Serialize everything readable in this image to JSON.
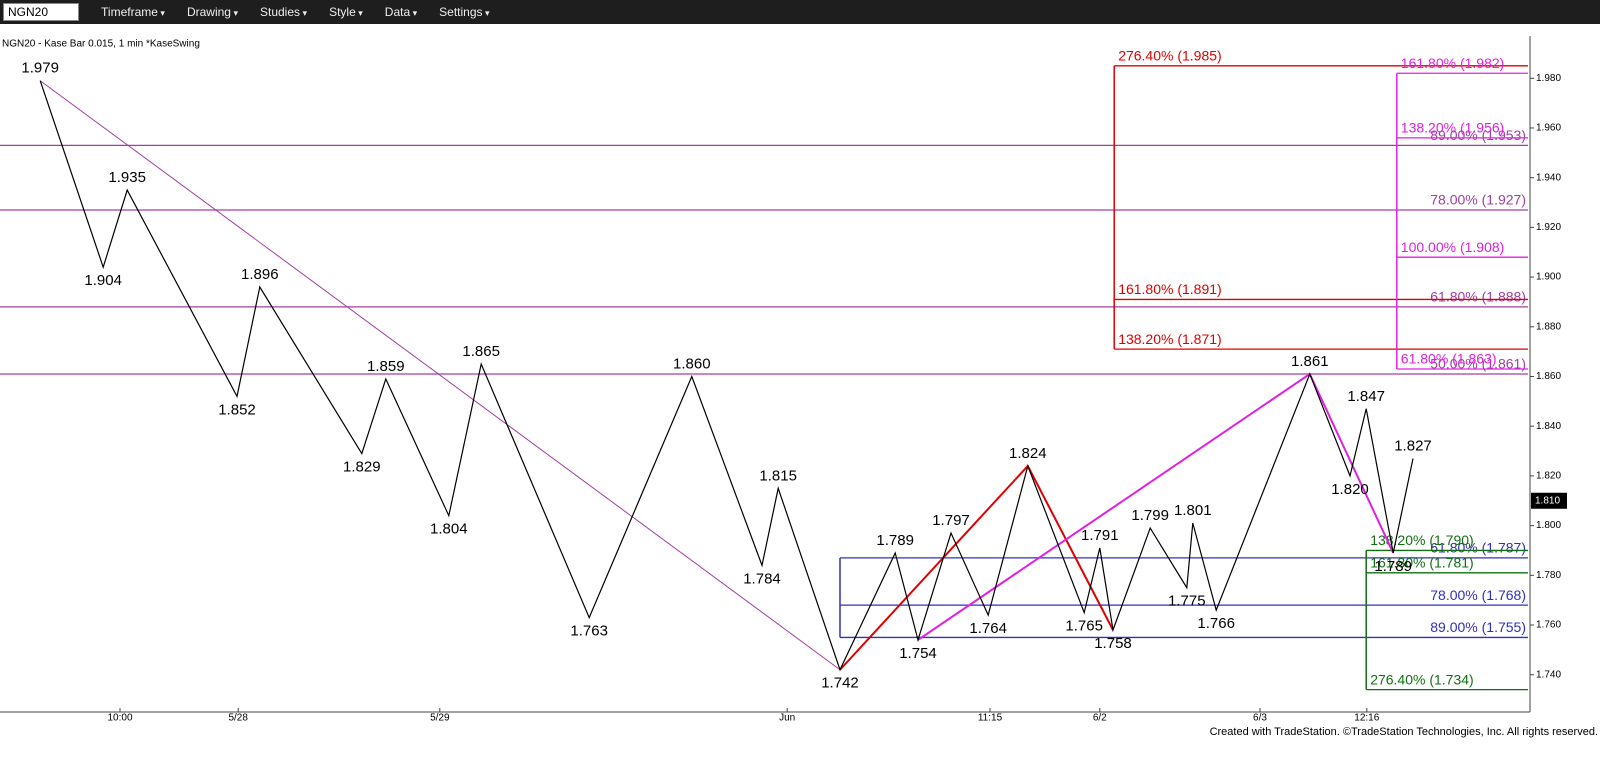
{
  "toolbar": {
    "symbol": "NGN20",
    "items": [
      "Timeframe",
      "Drawing",
      "Studies",
      "Style",
      "Data",
      "Settings"
    ]
  },
  "footer": "Created with TradeStation. ©TradeStation Technologies, Inc. All rights reserved.",
  "chart_data": {
    "type": "line",
    "title": "NGN20 - Kase Bar 0.015, 1 min  *KaseSwing",
    "color": "#000000",
    "x": [
      6.7,
      17.2,
      21.2,
      39.5,
      43.3,
      60.3,
      64.3,
      74.8,
      80.2,
      98.2,
      115.3,
      127,
      129.7,
      140,
      149.2,
      153,
      158.5,
      164.7,
      171.3,
      180.7,
      183.3,
      185.5,
      191.7,
      197.8,
      198.8,
      202.7,
      218.3,
      225,
      227.7,
      232.2,
      235.5
    ],
    "values": [
      1.979,
      1.904,
      1.935,
      1.852,
      1.896,
      1.829,
      1.859,
      1.804,
      1.865,
      1.763,
      1.86,
      1.784,
      1.815,
      1.742,
      1.789,
      1.754,
      1.797,
      1.764,
      1.824,
      1.765,
      1.791,
      1.758,
      1.799,
      1.775,
      1.801,
      1.766,
      1.861,
      1.82,
      1.847,
      1.789,
      1.827
    ],
    "value_labels": [
      "1.979",
      "1.904",
      "1.935",
      "1.852",
      "1.896",
      "1.829",
      "1.859",
      "1.804",
      "1.865",
      "1.763",
      "1.860",
      "1.784",
      "1.815",
      "1.742",
      "1.789",
      "1.754",
      "1.797",
      "1.764",
      "1.824",
      "1.765",
      "1.791",
      "1.758",
      "1.799",
      "1.775",
      "1.801",
      "1.766",
      "1.861",
      "1.820",
      "1.847",
      "1.789",
      "1.827"
    ],
    "xlim": [
      0,
      255
    ],
    "xticks": [
      {
        "value": 20,
        "label": "10:00"
      },
      {
        "value": 39.7,
        "label": "5/28"
      },
      {
        "value": 73.3,
        "label": "5/29"
      },
      {
        "value": 131.2,
        "label": "Jun"
      },
      {
        "value": 165,
        "label": "11:15"
      },
      {
        "value": 183.3,
        "label": "6/2"
      },
      {
        "value": 210,
        "label": "6/3"
      },
      {
        "value": 227.8,
        "label": "12:16"
      }
    ],
    "ylim": [
      1.725,
      1.997
    ],
    "yticks": [
      {
        "value": 1.74,
        "label": "1.740"
      },
      {
        "value": 1.76,
        "label": "1.760"
      },
      {
        "value": 1.78,
        "label": "1.780"
      },
      {
        "value": 1.8,
        "label": "1.800"
      },
      {
        "value": 1.82,
        "label": "1.820"
      },
      {
        "value": 1.84,
        "label": "1.840"
      },
      {
        "value": 1.86,
        "label": "1.860"
      },
      {
        "value": 1.88,
        "label": "1.880"
      },
      {
        "value": 1.9,
        "label": "1.900"
      },
      {
        "value": 1.92,
        "label": "1.920"
      },
      {
        "value": 1.94,
        "label": "1.940"
      },
      {
        "value": 1.96,
        "label": "1.960"
      },
      {
        "value": 1.98,
        "label": "1.980"
      }
    ],
    "last_price": {
      "value": 1.81,
      "label": "1.810"
    },
    "overlays": [
      {
        "color": "#a040a0",
        "x": [
          6.7,
          140
        ],
        "values": [
          1.979,
          1.742
        ]
      },
      {
        "color": "#e00000",
        "x": [
          140,
          171.3,
          185.5
        ],
        "values": [
          1.742,
          1.824,
          1.758
        ]
      },
      {
        "color": "#e020e0",
        "x": [
          153,
          218.3,
          232.2
        ],
        "values": [
          1.754,
          1.861,
          1.789
        ]
      }
    ],
    "levels": [
      {
        "color": "#a040a0",
        "x_start": 0,
        "label_align": "end",
        "lines": [
          {
            "value": 1.953,
            "label": "89.00% (1.953)"
          },
          {
            "value": 1.927,
            "label": "78.00% (1.927)"
          },
          {
            "value": 1.888,
            "label": "61.80% (1.888)"
          },
          {
            "value": 1.861,
            "label": "50.00% (1.861)"
          }
        ]
      },
      {
        "color": "#e00000",
        "x_start": 185.7,
        "label_align": "start",
        "lines": [
          {
            "value": 1.985,
            "label": "276.40% (1.985)"
          },
          {
            "value": 1.891,
            "label": "161.80% (1.891)"
          },
          {
            "value": 1.871,
            "label": "138.20% (1.871)"
          }
        ]
      },
      {
        "color": "#e020e0",
        "x_start": 232.8,
        "label_align": "start",
        "lines": [
          {
            "value": 1.982,
            "label": "161.80% (1.982)"
          },
          {
            "value": 1.956,
            "label": "138.20% (1.956)"
          },
          {
            "value": 1.908,
            "label": "100.00% (1.908)"
          },
          {
            "value": 1.863,
            "label": "61.80% (1.863)"
          }
        ]
      },
      {
        "color": "#3030c0",
        "x_start": 140,
        "label_align": "end",
        "lines": [
          {
            "value": 1.787,
            "label": "61.80% (1.787)"
          },
          {
            "value": 1.768,
            "label": "78.00% (1.768)"
          },
          {
            "value": 1.755,
            "label": "89.00% (1.755)"
          }
        ]
      },
      {
        "color": "#107010",
        "x_start": 227.7,
        "label_align": "start",
        "lines": [
          {
            "value": 1.79,
            "label": "138.20% (1.790)"
          },
          {
            "value": 1.781,
            "label": "161.80% (1.781)"
          },
          {
            "value": 1.734,
            "label": "276.40% (1.734)"
          }
        ]
      }
    ]
  }
}
